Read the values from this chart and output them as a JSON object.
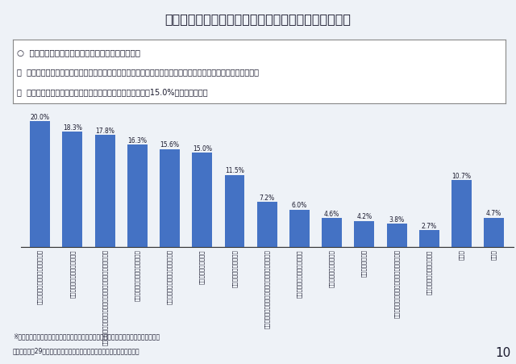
{
  "title": "前職の仕事をやめた理由（介護関係職種：複数回答）",
  "values": [
    20.0,
    18.3,
    17.8,
    16.3,
    15.6,
    15.0,
    11.5,
    7.2,
    6.0,
    4.6,
    4.2,
    3.8,
    2.7,
    10.7,
    4.7
  ],
  "labels": [
    "職場の人間関係に問題があったため",
    "結婚・出産・妊娠・育児のため",
    "法人や施設・事業所の理念や運営のあり方に不満があったため",
    "他に良い仕事・職場があったため",
    "自分の将来の見込みが立たなかった",
    "収入が少なかったため",
    "新しい資格を取ったから",
    "人員整理・勧奨退職・法人解散・事業不振等のため",
    "自分に向かない仕事だったため",
    "家族の介護・看護のため",
    "病気・高齢のため",
    "家族の転職・転動、又は事業所の移転のため",
    "定年・雇用契約の満了のため",
    "その他",
    "無回答"
  ],
  "bar_color": "#4472C4",
  "bg_color": "#eef2f7",
  "title_bg_color": "#dce6f1",
  "subtitle_lines": [
    "○  介護関係職種が退職を検討するきっかけとして、",
    "・  上位に、「職場の人間関係」や「法人・事業所の理念や運営のあり方」に対する不満が挙げられるとともに、",
    "・  「収入が少なかったため」という理由をあげている割合が15.0%となっている。"
  ],
  "footnotes": [
    "※前職の職種について「介護関係職種」と回答した人を対象に前職の離職理由を調査。",
    "【出典】平成29年度介護労働実態調査（（公財）介護労働安定センター）"
  ],
  "page_number": "10",
  "ylim": [
    0,
    22
  ]
}
